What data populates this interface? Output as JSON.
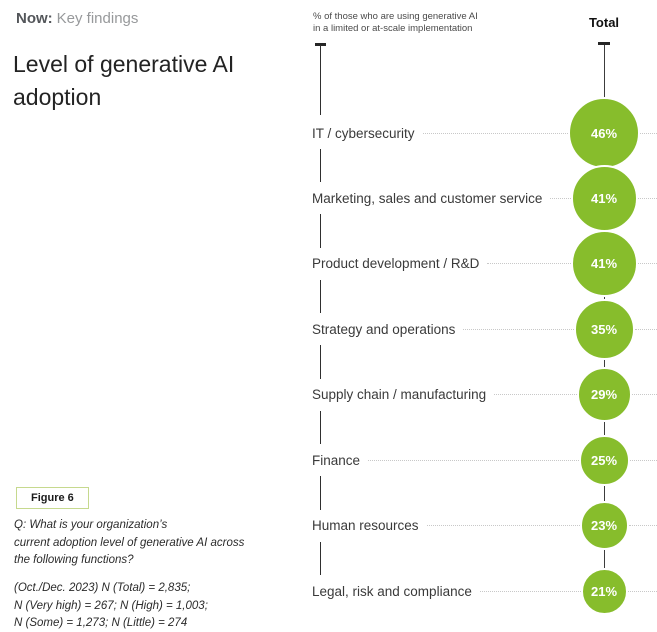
{
  "page": {
    "eyebrow_prefix": "Now:",
    "eyebrow_rest": "Key findings",
    "title": "Level of generative AI adoption",
    "figure_label": "Figure 6",
    "question_lines": [
      "Q: What is your organization’s",
      "current adoption level of generative AI across",
      "the following functions?"
    ],
    "sample_lines": [
      "(Oct./Dec. 2023) N (Total) = 2,835;",
      "N (Very high) = 267; N (High) = 1,003;",
      "N (Some) = 1,273; N (Little) = 274"
    ]
  },
  "chart_data": {
    "type": "scatter",
    "variant": "proportional-bubble-column",
    "title": "Level of generative AI adoption",
    "axis_note_lines": [
      "% of those who are using generative AI",
      "in a limited or at-scale implementation"
    ],
    "column_header": "Total",
    "categories": [
      "IT / cybersecurity",
      "Marketing, sales and customer service",
      "Product development / R&D",
      "Strategy and operations",
      "Supply chain / manufacturing",
      "Finance",
      "Human resources",
      "Legal, risk and compliance"
    ],
    "values": [
      46,
      41,
      41,
      35,
      29,
      25,
      23,
      21
    ],
    "unit": "%",
    "legend_position": "none",
    "grid": "off",
    "colors": {
      "bubble_green": "#87bd2c",
      "leader_dot_gray": "#c8c8c8",
      "axis_dark": "#2f2f2f",
      "badge_border_green": "#c6d98e",
      "eyebrow_gray": "#97999b"
    }
  }
}
